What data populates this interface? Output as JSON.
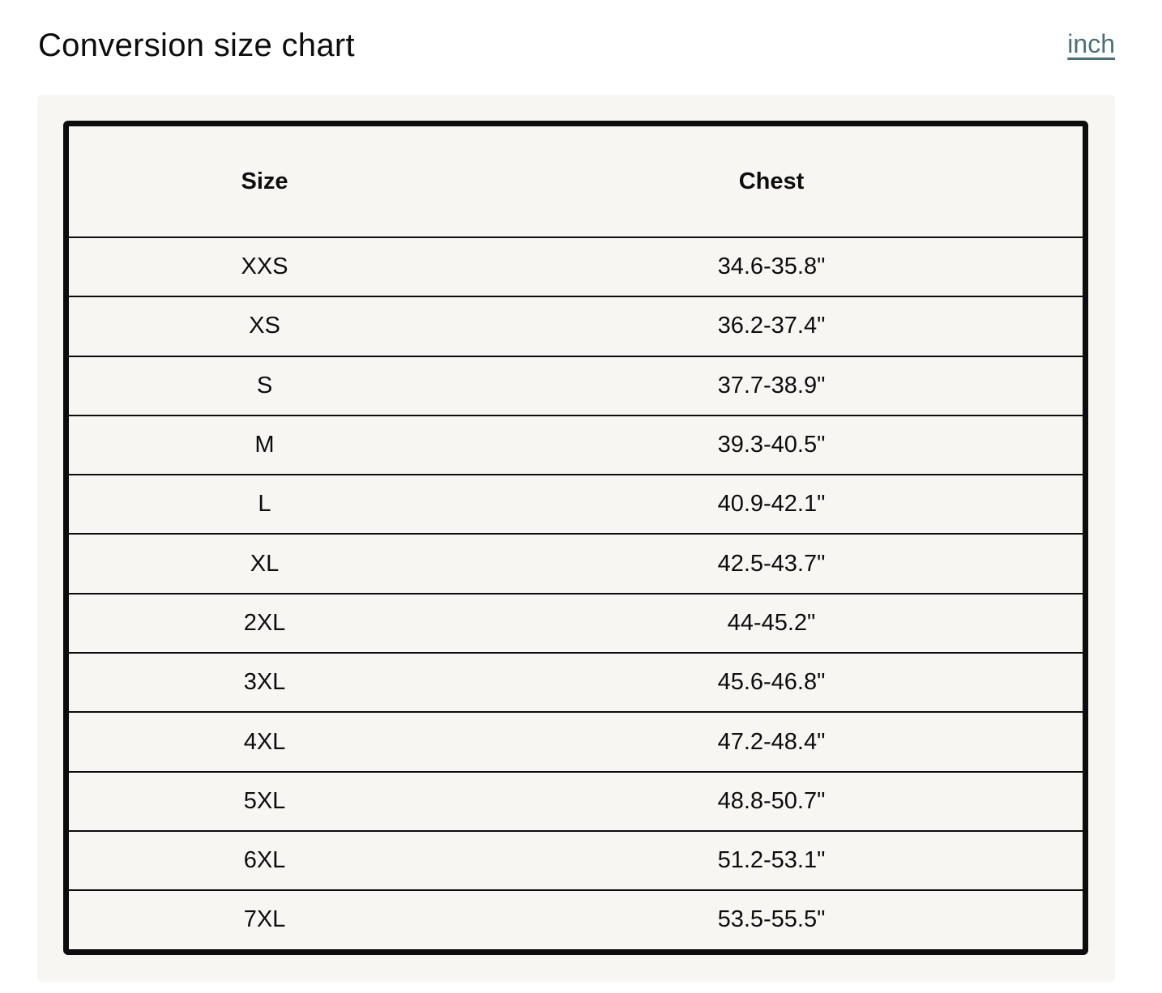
{
  "header": {
    "title": "Conversion size chart",
    "unit_link": "inch"
  },
  "table": {
    "columns": [
      "Size",
      "Chest"
    ],
    "rows": [
      [
        "XXS",
        "34.6-35.8\""
      ],
      [
        "XS",
        "36.2-37.4\""
      ],
      [
        "S",
        "37.7-38.9\""
      ],
      [
        "M",
        "39.3-40.5\""
      ],
      [
        "L",
        "40.9-42.1\""
      ],
      [
        "XL",
        "42.5-43.7\""
      ],
      [
        "2XL",
        "44-45.2\""
      ],
      [
        "3XL",
        "45.6-46.8\""
      ],
      [
        "4XL",
        "47.2-48.4\""
      ],
      [
        "5XL",
        "48.8-50.7\""
      ],
      [
        "6XL",
        "51.2-53.1\""
      ],
      [
        "7XL",
        "53.5-55.5\""
      ]
    ]
  },
  "colors": {
    "link": "#4f6f76",
    "panel": "#f7f6f2",
    "border": "#0d0d0d"
  }
}
